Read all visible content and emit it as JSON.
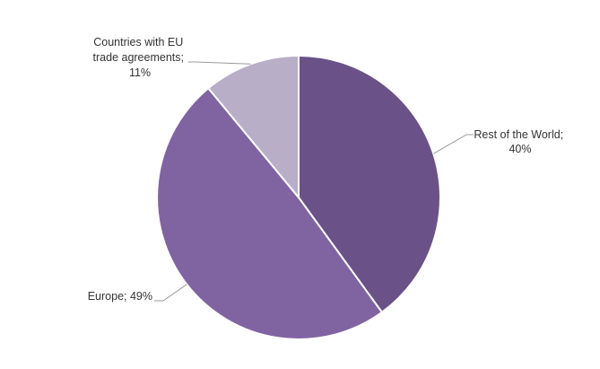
{
  "chart_data": {
    "type": "pie",
    "title": "",
    "slices": [
      {
        "name": "Rest of the World",
        "value": 40,
        "label_lines": [
          "Rest of the World;",
          "40%"
        ],
        "color": "#6a5187"
      },
      {
        "name": "Europe",
        "value": 49,
        "label_lines": [
          "Europe; 49%"
        ],
        "color": "#8064a2"
      },
      {
        "name": "Countries with EU trade agreements",
        "value": 11,
        "label_lines": [
          "Countries with EU",
          "trade agreements;",
          "11%"
        ],
        "color": "#b8aec8"
      }
    ],
    "start_angle": "12 o'clock",
    "direction": "clockwise",
    "legend": "none"
  }
}
